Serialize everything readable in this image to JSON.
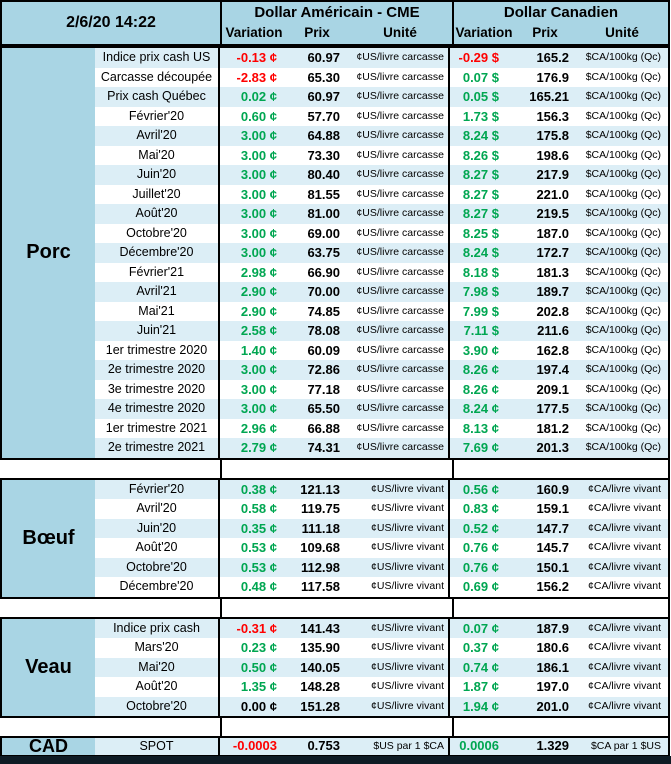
{
  "header": {
    "date_label": "2/6/20 14:22",
    "groups": [
      {
        "title": "Dollar Américain - CME",
        "columns": [
          "Variation",
          "Prix",
          "Unité"
        ]
      },
      {
        "title": "Dollar Canadien",
        "columns": [
          "Variation",
          "Prix",
          "Unité"
        ]
      }
    ]
  },
  "colors": {
    "panel_blue": "#A9D5E4",
    "row_stripe": "#DCEEF6",
    "positive": "#00A651",
    "negative": "#FF0000",
    "neutral": "#000000",
    "border": "#000000",
    "bottom_bar": "#0E1B24"
  },
  "row_fields": [
    "label",
    "us_variation",
    "us_variation_color",
    "us_price",
    "us_unit",
    "ca_variation",
    "ca_variation_color",
    "ca_price",
    "ca_unit"
  ],
  "sections": [
    {
      "category": "Porc",
      "rows": [
        [
          "Indice prix cash US",
          "-0.13 ¢",
          "red",
          "60.97",
          "¢US/livre carcasse",
          "-0.29 $",
          "red",
          "165.2",
          "$CA/100kg (Qc)"
        ],
        [
          "Carcasse découpée",
          "-2.83 ¢",
          "red",
          "65.30",
          "¢US/livre carcasse",
          "0.07 $",
          "green",
          "176.9",
          "$CA/100kg (Qc)"
        ],
        [
          "Prix cash Québec",
          "0.02 ¢",
          "green",
          "60.97",
          "¢US/livre carcasse",
          "0.05 $",
          "green",
          "165.21",
          "$CA/100kg (Qc)"
        ],
        [
          "Février'20",
          "0.60 ¢",
          "green",
          "57.70",
          "¢US/livre carcasse",
          "1.73 $",
          "green",
          "156.3",
          "$CA/100kg (Qc)"
        ],
        [
          "Avril'20",
          "3.00 ¢",
          "green",
          "64.88",
          "¢US/livre carcasse",
          "8.24 $",
          "green",
          "175.8",
          "$CA/100kg (Qc)"
        ],
        [
          "Mai'20",
          "3.00 ¢",
          "green",
          "73.30",
          "¢US/livre carcasse",
          "8.26 $",
          "green",
          "198.6",
          "$CA/100kg (Qc)"
        ],
        [
          "Juin'20",
          "3.00 ¢",
          "green",
          "80.40",
          "¢US/livre carcasse",
          "8.27 $",
          "green",
          "217.9",
          "$CA/100kg (Qc)"
        ],
        [
          "Juillet'20",
          "3.00 ¢",
          "green",
          "81.55",
          "¢US/livre carcasse",
          "8.27 $",
          "green",
          "221.0",
          "$CA/100kg (Qc)"
        ],
        [
          "Août'20",
          "3.00 ¢",
          "green",
          "81.00",
          "¢US/livre carcasse",
          "8.27 $",
          "green",
          "219.5",
          "$CA/100kg (Qc)"
        ],
        [
          "Octobre'20",
          "3.00 ¢",
          "green",
          "69.00",
          "¢US/livre carcasse",
          "8.25 $",
          "green",
          "187.0",
          "$CA/100kg (Qc)"
        ],
        [
          "Décembre'20",
          "3.00 ¢",
          "green",
          "63.75",
          "¢US/livre carcasse",
          "8.24 $",
          "green",
          "172.7",
          "$CA/100kg (Qc)"
        ],
        [
          "Février'21",
          "2.98 ¢",
          "green",
          "66.90",
          "¢US/livre carcasse",
          "8.18 $",
          "green",
          "181.3",
          "$CA/100kg (Qc)"
        ],
        [
          "Avril'21",
          "2.90 ¢",
          "green",
          "70.00",
          "¢US/livre carcasse",
          "7.98 $",
          "green",
          "189.7",
          "$CA/100kg (Qc)"
        ],
        [
          "Mai'21",
          "2.90 ¢",
          "green",
          "74.85",
          "¢US/livre carcasse",
          "7.99 $",
          "green",
          "202.8",
          "$CA/100kg (Qc)"
        ],
        [
          "Juin'21",
          "2.58 ¢",
          "green",
          "78.08",
          "¢US/livre carcasse",
          "7.11 $",
          "green",
          "211.6",
          "$CA/100kg (Qc)"
        ],
        [
          "1er trimestre 2020",
          "1.40 ¢",
          "green",
          "60.09",
          "¢US/livre carcasse",
          "3.90 ¢",
          "green",
          "162.8",
          "$CA/100kg (Qc)"
        ],
        [
          "2e trimestre 2020",
          "3.00 ¢",
          "green",
          "72.86",
          "¢US/livre carcasse",
          "8.26 ¢",
          "green",
          "197.4",
          "$CA/100kg (Qc)"
        ],
        [
          "3e trimestre 2020",
          "3.00 ¢",
          "green",
          "77.18",
          "¢US/livre carcasse",
          "8.26 ¢",
          "green",
          "209.1",
          "$CA/100kg (Qc)"
        ],
        [
          "4e trimestre 2020",
          "3.00 ¢",
          "green",
          "65.50",
          "¢US/livre carcasse",
          "8.24 ¢",
          "green",
          "177.5",
          "$CA/100kg (Qc)"
        ],
        [
          "1er trimestre 2021",
          "2.96 ¢",
          "green",
          "66.88",
          "¢US/livre carcasse",
          "8.13 ¢",
          "green",
          "181.2",
          "$CA/100kg (Qc)"
        ],
        [
          "2e trimestre 2021",
          "2.79 ¢",
          "green",
          "74.31",
          "¢US/livre carcasse",
          "7.69 ¢",
          "green",
          "201.3",
          "$CA/100kg (Qc)"
        ]
      ]
    },
    {
      "category": "Bœuf",
      "rows": [
        [
          "Février'20",
          "0.38 ¢",
          "green",
          "121.13",
          "¢US/livre vivant",
          "0.56 ¢",
          "green",
          "160.9",
          "¢CA/livre vivant"
        ],
        [
          "Avril'20",
          "0.58 ¢",
          "green",
          "119.75",
          "¢US/livre vivant",
          "0.83 ¢",
          "green",
          "159.1",
          "¢CA/livre vivant"
        ],
        [
          "Juin'20",
          "0.35 ¢",
          "green",
          "111.18",
          "¢US/livre vivant",
          "0.52 ¢",
          "green",
          "147.7",
          "¢CA/livre vivant"
        ],
        [
          "Août'20",
          "0.53 ¢",
          "green",
          "109.68",
          "¢US/livre vivant",
          "0.76 ¢",
          "green",
          "145.7",
          "¢CA/livre vivant"
        ],
        [
          "Octobre'20",
          "0.53 ¢",
          "green",
          "112.98",
          "¢US/livre vivant",
          "0.76 ¢",
          "green",
          "150.1",
          "¢CA/livre vivant"
        ],
        [
          "Décembre'20",
          "0.48 ¢",
          "green",
          "117.58",
          "¢US/livre vivant",
          "0.69 ¢",
          "green",
          "156.2",
          "¢CA/livre vivant"
        ]
      ]
    },
    {
      "category": "Veau",
      "rows": [
        [
          "Indice prix cash",
          "-0.31 ¢",
          "red",
          "141.43",
          "¢US/livre vivant",
          "0.07 ¢",
          "green",
          "187.9",
          "¢CA/livre vivant"
        ],
        [
          "Mars'20",
          "0.23 ¢",
          "green",
          "135.90",
          "¢US/livre vivant",
          "0.37 ¢",
          "green",
          "180.6",
          "¢CA/livre vivant"
        ],
        [
          "Mai'20",
          "0.50 ¢",
          "green",
          "140.05",
          "¢US/livre vivant",
          "0.74 ¢",
          "green",
          "186.1",
          "¢CA/livre vivant"
        ],
        [
          "Août'20",
          "1.35 ¢",
          "green",
          "148.28",
          "¢US/livre vivant",
          "1.87 ¢",
          "green",
          "197.0",
          "¢CA/livre vivant"
        ],
        [
          "Octobre'20",
          "0.00 ¢",
          "black",
          "151.28",
          "¢US/livre vivant",
          "1.94 ¢",
          "green",
          "201.0",
          "¢CA/livre vivant"
        ]
      ]
    },
    {
      "category": "CAD",
      "rows": [
        [
          "SPOT",
          "-0.0003",
          "red",
          "0.753",
          "$US par 1 $CA",
          "0.0006",
          "green",
          "1.329",
          "$CA par 1 $US"
        ]
      ]
    }
  ]
}
